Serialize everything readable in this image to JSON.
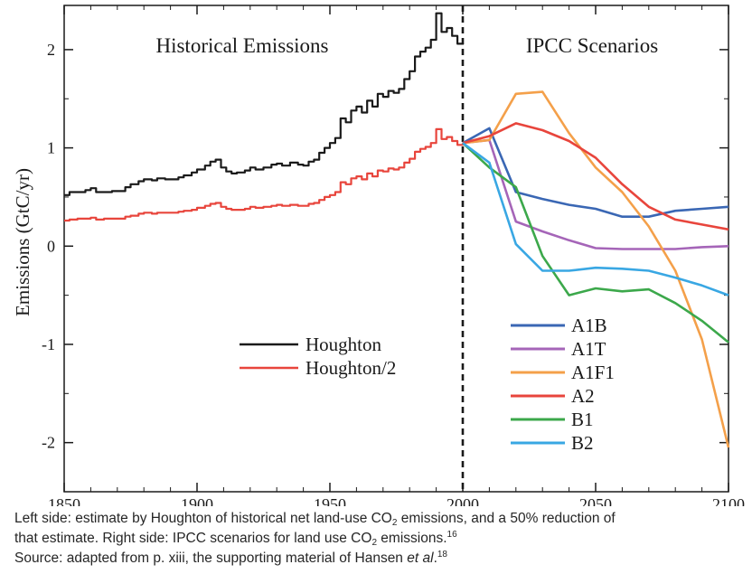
{
  "chart_data": {
    "type": "line",
    "ylabel": "Emissions (GtC/yr)",
    "xlim": [
      1850,
      2100
    ],
    "ylim": [
      -2.5,
      2.45
    ],
    "x_ticks": [
      "1850",
      "1900",
      "1950",
      "2000",
      "2050",
      "2100"
    ],
    "y_ticks": [
      "-2",
      "-1",
      "0",
      "1",
      "2"
    ],
    "grid": false,
    "divider_x": 2000,
    "left_title": "Historical Emissions",
    "right_title": "IPCC Scenarios",
    "historical_series": [
      {
        "name": "Houghton",
        "color": "#1a1a1a",
        "points": [
          [
            1850,
            0.52
          ],
          [
            1852,
            0.55
          ],
          [
            1855,
            0.55
          ],
          [
            1858,
            0.57
          ],
          [
            1860,
            0.59
          ],
          [
            1862,
            0.55
          ],
          [
            1865,
            0.55
          ],
          [
            1868,
            0.56
          ],
          [
            1870,
            0.56
          ],
          [
            1873,
            0.6
          ],
          [
            1875,
            0.63
          ],
          [
            1878,
            0.66
          ],
          [
            1880,
            0.68
          ],
          [
            1883,
            0.67
          ],
          [
            1885,
            0.69
          ],
          [
            1888,
            0.68
          ],
          [
            1890,
            0.68
          ],
          [
            1893,
            0.7
          ],
          [
            1895,
            0.72
          ],
          [
            1898,
            0.75
          ],
          [
            1900,
            0.78
          ],
          [
            1903,
            0.82
          ],
          [
            1905,
            0.86
          ],
          [
            1907,
            0.88
          ],
          [
            1909,
            0.8
          ],
          [
            1911,
            0.76
          ],
          [
            1913,
            0.74
          ],
          [
            1915,
            0.75
          ],
          [
            1918,
            0.77
          ],
          [
            1920,
            0.8
          ],
          [
            1922,
            0.78
          ],
          [
            1925,
            0.8
          ],
          [
            1928,
            0.83
          ],
          [
            1930,
            0.84
          ],
          [
            1932,
            0.82
          ],
          [
            1935,
            0.85
          ],
          [
            1938,
            0.83
          ],
          [
            1940,
            0.82
          ],
          [
            1942,
            0.86
          ],
          [
            1944,
            0.88
          ],
          [
            1946,
            0.95
          ],
          [
            1948,
            1.0
          ],
          [
            1950,
            1.05
          ],
          [
            1952,
            1.1
          ],
          [
            1954,
            1.3
          ],
          [
            1956,
            1.26
          ],
          [
            1958,
            1.38
          ],
          [
            1960,
            1.42
          ],
          [
            1962,
            1.36
          ],
          [
            1964,
            1.48
          ],
          [
            1966,
            1.42
          ],
          [
            1968,
            1.55
          ],
          [
            1970,
            1.52
          ],
          [
            1972,
            1.58
          ],
          [
            1974,
            1.56
          ],
          [
            1976,
            1.6
          ],
          [
            1978,
            1.7
          ],
          [
            1980,
            1.78
          ],
          [
            1982,
            1.93
          ],
          [
            1984,
            1.98
          ],
          [
            1986,
            2.02
          ],
          [
            1988,
            2.1
          ],
          [
            1990,
            2.37
          ],
          [
            1992,
            2.18
          ],
          [
            1994,
            2.22
          ],
          [
            1996,
            2.14
          ],
          [
            1998,
            2.06
          ],
          [
            2000,
            2.05
          ]
        ]
      },
      {
        "name": "Houghton/2",
        "color": "#e8453c",
        "points": [
          [
            1850,
            0.26
          ],
          [
            1852,
            0.27
          ],
          [
            1855,
            0.28
          ],
          [
            1858,
            0.28
          ],
          [
            1860,
            0.29
          ],
          [
            1862,
            0.27
          ],
          [
            1865,
            0.28
          ],
          [
            1868,
            0.28
          ],
          [
            1870,
            0.28
          ],
          [
            1873,
            0.3
          ],
          [
            1875,
            0.31
          ],
          [
            1878,
            0.33
          ],
          [
            1880,
            0.34
          ],
          [
            1883,
            0.33
          ],
          [
            1885,
            0.34
          ],
          [
            1888,
            0.34
          ],
          [
            1890,
            0.34
          ],
          [
            1893,
            0.35
          ],
          [
            1895,
            0.36
          ],
          [
            1898,
            0.37
          ],
          [
            1900,
            0.39
          ],
          [
            1903,
            0.41
          ],
          [
            1905,
            0.43
          ],
          [
            1907,
            0.44
          ],
          [
            1909,
            0.4
          ],
          [
            1911,
            0.38
          ],
          [
            1913,
            0.37
          ],
          [
            1915,
            0.37
          ],
          [
            1918,
            0.38
          ],
          [
            1920,
            0.4
          ],
          [
            1922,
            0.39
          ],
          [
            1925,
            0.4
          ],
          [
            1928,
            0.41
          ],
          [
            1930,
            0.42
          ],
          [
            1932,
            0.41
          ],
          [
            1935,
            0.42
          ],
          [
            1938,
            0.41
          ],
          [
            1940,
            0.41
          ],
          [
            1942,
            0.43
          ],
          [
            1944,
            0.44
          ],
          [
            1946,
            0.47
          ],
          [
            1948,
            0.5
          ],
          [
            1950,
            0.52
          ],
          [
            1952,
            0.55
          ],
          [
            1954,
            0.65
          ],
          [
            1956,
            0.63
          ],
          [
            1958,
            0.69
          ],
          [
            1960,
            0.71
          ],
          [
            1962,
            0.68
          ],
          [
            1964,
            0.74
          ],
          [
            1966,
            0.71
          ],
          [
            1968,
            0.77
          ],
          [
            1970,
            0.76
          ],
          [
            1972,
            0.79
          ],
          [
            1974,
            0.78
          ],
          [
            1976,
            0.8
          ],
          [
            1978,
            0.85
          ],
          [
            1980,
            0.89
          ],
          [
            1982,
            0.96
          ],
          [
            1984,
            0.99
          ],
          [
            1986,
            1.01
          ],
          [
            1988,
            1.05
          ],
          [
            1990,
            1.19
          ],
          [
            1992,
            1.09
          ],
          [
            1994,
            1.11
          ],
          [
            1996,
            1.07
          ],
          [
            1998,
            1.03
          ],
          [
            2000,
            1.05
          ]
        ]
      }
    ],
    "scenario_series": [
      {
        "name": "A1B",
        "color": "#3a67b4",
        "points": [
          [
            2000,
            1.05
          ],
          [
            2010,
            1.2
          ],
          [
            2020,
            0.55
          ],
          [
            2030,
            0.48
          ],
          [
            2040,
            0.42
          ],
          [
            2050,
            0.38
          ],
          [
            2060,
            0.3
          ],
          [
            2070,
            0.3
          ],
          [
            2080,
            0.36
          ],
          [
            2090,
            0.38
          ],
          [
            2100,
            0.4
          ]
        ]
      },
      {
        "name": "A1T",
        "color": "#a565b8",
        "points": [
          [
            2000,
            1.05
          ],
          [
            2010,
            1.08
          ],
          [
            2020,
            0.25
          ],
          [
            2030,
            0.15
          ],
          [
            2040,
            0.06
          ],
          [
            2050,
            -0.02
          ],
          [
            2060,
            -0.03
          ],
          [
            2070,
            -0.03
          ],
          [
            2080,
            -0.03
          ],
          [
            2090,
            -0.01
          ],
          [
            2100,
            0.0
          ]
        ]
      },
      {
        "name": "A1F1",
        "color": "#f4a04a",
        "points": [
          [
            2000,
            1.05
          ],
          [
            2010,
            1.08
          ],
          [
            2020,
            1.55
          ],
          [
            2030,
            1.57
          ],
          [
            2040,
            1.15
          ],
          [
            2050,
            0.8
          ],
          [
            2060,
            0.55
          ],
          [
            2070,
            0.2
          ],
          [
            2080,
            -0.25
          ],
          [
            2090,
            -0.95
          ],
          [
            2100,
            -2.05
          ]
        ]
      },
      {
        "name": "A2",
        "color": "#e8453c",
        "points": [
          [
            2000,
            1.05
          ],
          [
            2010,
            1.12
          ],
          [
            2020,
            1.25
          ],
          [
            2030,
            1.18
          ],
          [
            2040,
            1.07
          ],
          [
            2050,
            0.9
          ],
          [
            2060,
            0.63
          ],
          [
            2070,
            0.4
          ],
          [
            2080,
            0.27
          ],
          [
            2090,
            0.22
          ],
          [
            2100,
            0.17
          ]
        ]
      },
      {
        "name": "B1",
        "color": "#3ca84b",
        "points": [
          [
            2000,
            1.05
          ],
          [
            2010,
            0.8
          ],
          [
            2020,
            0.6
          ],
          [
            2030,
            -0.1
          ],
          [
            2040,
            -0.5
          ],
          [
            2050,
            -0.43
          ],
          [
            2060,
            -0.46
          ],
          [
            2070,
            -0.44
          ],
          [
            2080,
            -0.58
          ],
          [
            2090,
            -0.76
          ],
          [
            2100,
            -0.98
          ]
        ]
      },
      {
        "name": "B2",
        "color": "#39a7e3",
        "points": [
          [
            2000,
            1.05
          ],
          [
            2010,
            0.85
          ],
          [
            2020,
            0.02
          ],
          [
            2030,
            -0.25
          ],
          [
            2040,
            -0.25
          ],
          [
            2050,
            -0.22
          ],
          [
            2060,
            -0.23
          ],
          [
            2070,
            -0.25
          ],
          [
            2080,
            -0.32
          ],
          [
            2090,
            -0.4
          ],
          [
            2100,
            -0.5
          ]
        ]
      }
    ]
  },
  "caption": {
    "line1_a": "Left side: estimate by Houghton of historical net land-use CO",
    "line1_sub": "2",
    "line1_b": " emissions, and a 50% reduction of",
    "line2_a": "that estimate. Right side: IPCC scenarios for land use CO",
    "line2_sub": "2",
    "line2_b": " emissions.",
    "line2_sup": "16",
    "line3_a": "Source: adapted from p. xiii, the supporting material of Hansen ",
    "line3_italic": "et al",
    "line3_b": ".",
    "line3_sup": "18"
  }
}
